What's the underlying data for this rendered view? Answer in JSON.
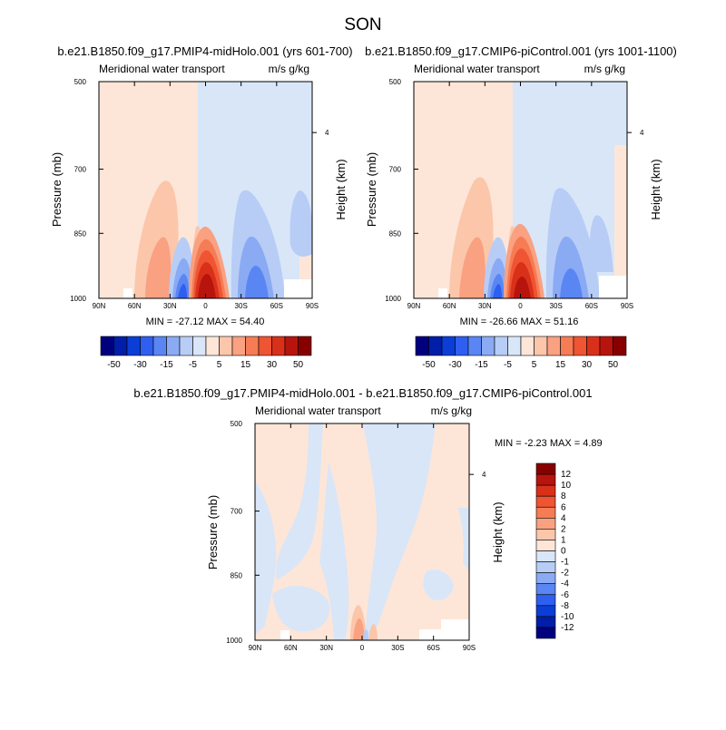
{
  "figure": {
    "title": "SON"
  },
  "colors": {
    "main_levels": [
      "#00007f",
      "#001ea8",
      "#0a3ed6",
      "#2f5ff0",
      "#5a86f3",
      "#8aaaf4",
      "#b7cdf6",
      "#d8e6f8",
      "#fde6d8",
      "#fcc6ab",
      "#f9a181",
      "#f57c55",
      "#ef5433",
      "#d9301a",
      "#b8140e",
      "#870000"
    ],
    "diff_levels": [
      "#00007f",
      "#001ea8",
      "#0a3ed6",
      "#2f5ff0",
      "#5a86f3",
      "#8aaaf4",
      "#b7cdf6",
      "#d8e6f8",
      "#fde6d8",
      "#fcc6ab",
      "#f9a181",
      "#f57c55",
      "#ef5433",
      "#d9301a",
      "#b8140e",
      "#870000"
    ]
  },
  "chart_data": [
    {
      "type": "heatmap",
      "id": "panel1",
      "title": "b.e21.B1850.f09_g17.PMIP4-midHolo.001 (yrs 601-700)",
      "left_label": "Meridional water transport",
      "right_label": "m/s g/kg",
      "ylabel": "Pressure (mb)",
      "ylabel_right": "Height (km)",
      "right_ticks": [
        "4"
      ],
      "x_ticks": [
        "90N",
        "60N",
        "30N",
        "0",
        "30S",
        "60S",
        "90S"
      ],
      "y_ticks": [
        "500",
        "700",
        "850",
        "1000"
      ],
      "stats": "MIN = -27.12  MAX =  54.40",
      "min": -27.12,
      "max": 54.4,
      "colorbar_labels": [
        "-50",
        "-30",
        "-15",
        "-5",
        "5",
        "15",
        "30",
        "50"
      ]
    },
    {
      "type": "heatmap",
      "id": "panel2",
      "title": "b.e21.B1850.f09_g17.CMIP6-piControl.001 (yrs 1001-1100)",
      "left_label": "Meridional water transport",
      "right_label": "m/s g/kg",
      "ylabel": "Pressure (mb)",
      "ylabel_right": "Height (km)",
      "right_ticks": [
        "4"
      ],
      "x_ticks": [
        "90N",
        "60N",
        "30N",
        "0",
        "30S",
        "60S",
        "90S"
      ],
      "y_ticks": [
        "500",
        "700",
        "850",
        "1000"
      ],
      "stats": "MIN = -26.66  MAX =  51.16",
      "min": -26.66,
      "max": 51.16,
      "colorbar_labels": [
        "-50",
        "-30",
        "-15",
        "-5",
        "5",
        "15",
        "30",
        "50"
      ]
    },
    {
      "type": "heatmap",
      "id": "panel3",
      "title": "b.e21.B1850.f09_g17.PMIP4-midHolo.001 - b.e21.B1850.f09_g17.CMIP6-piControl.001",
      "left_label": "Meridional water transport",
      "right_label": "m/s g/kg",
      "ylabel": "Pressure (mb)",
      "ylabel_right": "Height (km)",
      "right_ticks": [
        "4"
      ],
      "x_ticks": [
        "90N",
        "60N",
        "30N",
        "0",
        "30S",
        "60S",
        "90S"
      ],
      "y_ticks": [
        "500",
        "700",
        "850",
        "1000"
      ],
      "stats": "MIN =  -2.23  MAX =   4.89",
      "min": -2.23,
      "max": 4.89,
      "colorbar_labels": [
        "12",
        "10",
        "8",
        "6",
        "4",
        "2",
        "1",
        "0",
        "-1",
        "-2",
        "-4",
        "-6",
        "-8",
        "-10",
        "-12"
      ]
    }
  ]
}
